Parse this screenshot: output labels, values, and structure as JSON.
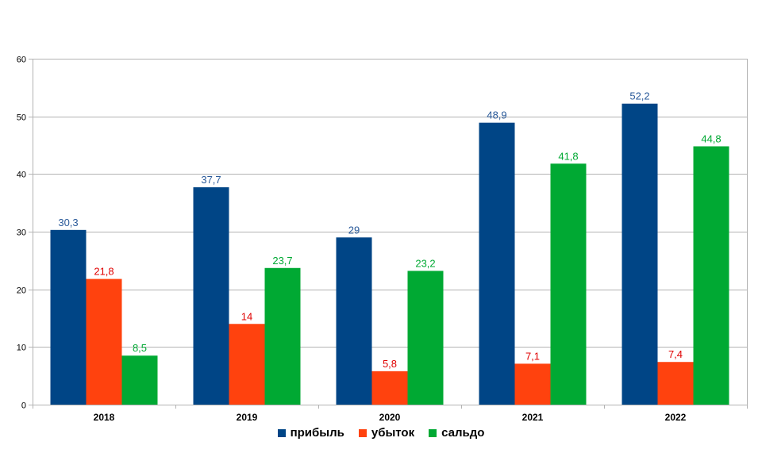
{
  "chart_data": {
    "type": "bar",
    "title": "",
    "xlabel": "",
    "ylabel": "",
    "categories": [
      "2018",
      "2019",
      "2020",
      "2021",
      "2022"
    ],
    "ylim": [
      0,
      60
    ],
    "yticks": [
      0,
      10,
      20,
      30,
      40,
      50,
      60
    ],
    "grid": true,
    "legend_position": "bottom",
    "series": [
      {
        "name": "прибыль",
        "color": "#004586",
        "label_color": "#2a5a9a",
        "values": [
          30.3,
          37.7,
          29,
          48.9,
          52.2
        ],
        "labels": [
          "30,3",
          "37,7",
          "29",
          "48,9",
          "52,2"
        ]
      },
      {
        "name": "убыток",
        "color": "#ff420e",
        "label_color": "#e00000",
        "values": [
          21.8,
          14,
          5.8,
          7.1,
          7.4
        ],
        "labels": [
          "21,8",
          "14",
          "5,8",
          "7,1",
          "7,4"
        ]
      },
      {
        "name": "сальдо",
        "color": "#00a933",
        "label_color": "#00a933",
        "values": [
          8.5,
          23.7,
          23.2,
          41.8,
          44.8
        ],
        "labels": [
          "8,5",
          "23,7",
          "23,2",
          "41,8",
          "44,8"
        ]
      }
    ]
  }
}
